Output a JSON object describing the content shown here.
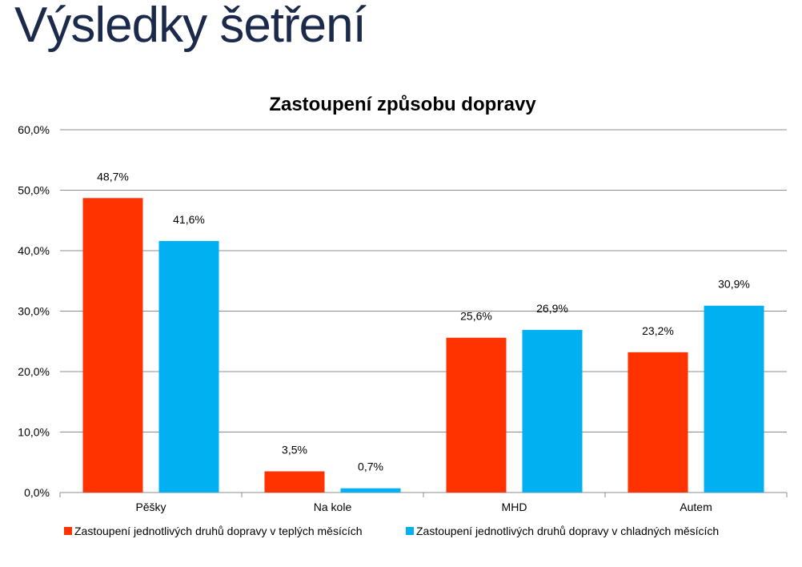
{
  "slide": {
    "title": "Výsledky šetření"
  },
  "chart_data": {
    "type": "bar",
    "title": "Zastoupení způsobu dopravy",
    "categories": [
      "Pěšky",
      "Na kole",
      "MHD",
      "Autem"
    ],
    "series": [
      {
        "name": "Zastoupení jednotlivých druhů dopravy v teplých měsících",
        "values": [
          48.7,
          3.5,
          25.6,
          23.2
        ],
        "color": "#ff3300"
      },
      {
        "name": "Zastoupení jednotlivých druhů dopravy v chladných měsících",
        "values": [
          41.6,
          0.7,
          26.9,
          30.9
        ],
        "color": "#00b0f0"
      }
    ],
    "data_labels": [
      [
        "48,7%",
        "3,5%",
        "25,6%",
        "23,2%"
      ],
      [
        "41,6%",
        "0,7%",
        "26,9%",
        "30,9%"
      ]
    ],
    "y_ticks": [
      0,
      10,
      20,
      30,
      40,
      50,
      60
    ],
    "y_tick_labels": [
      "0,0%",
      "10,0%",
      "20,0%",
      "30,0%",
      "40,0%",
      "50,0%",
      "60,0%"
    ],
    "ylim": [
      0,
      60
    ],
    "xlabel": "",
    "ylabel": "",
    "grid": true,
    "legend_position": "bottom"
  }
}
